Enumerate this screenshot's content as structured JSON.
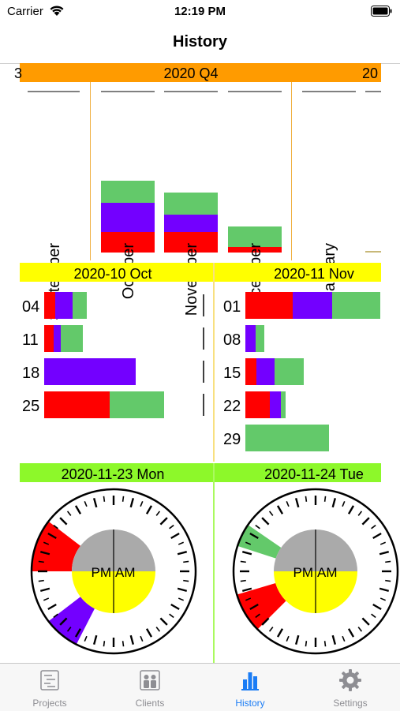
{
  "status_bar": {
    "carrier": "Carrier",
    "time": "12:19 PM"
  },
  "nav": {
    "title": "History"
  },
  "quarter": {
    "label": "2020 Q4",
    "next_label": "20",
    "prev_label": "3",
    "header_color": "#ff9b00",
    "months": [
      {
        "name": "September",
        "segments": []
      },
      {
        "name": "October",
        "segments": [
          {
            "color": "#ff0000",
            "value": 26
          },
          {
            "color": "#7300ff",
            "value": 37
          },
          {
            "color": "#63c96a",
            "value": 28
          }
        ]
      },
      {
        "name": "November",
        "segments": [
          {
            "color": "#ff0000",
            "value": 26
          },
          {
            "color": "#7300ff",
            "value": 22
          },
          {
            "color": "#63c96a",
            "value": 28
          }
        ]
      },
      {
        "name": "December",
        "segments": [
          {
            "color": "#ff0000",
            "value": 7
          },
          {
            "color": "#63c96a",
            "value": 26
          }
        ]
      },
      {
        "name": "January",
        "segments": []
      }
    ]
  },
  "weeks": {
    "header_color": "#ffff00",
    "left": {
      "title": "2020-10 Oct",
      "rows": [
        {
          "day": "04",
          "segments": [
            {
              "color": "#ff0000",
              "value": 14
            },
            {
              "color": "#7300ff",
              "value": 22
            },
            {
              "color": "#63c96a",
              "value": 18
            }
          ]
        },
        {
          "day": "11",
          "segments": [
            {
              "color": "#ff0000",
              "value": 12
            },
            {
              "color": "#7300ff",
              "value": 9
            },
            {
              "color": "#63c96a",
              "value": 28
            }
          ]
        },
        {
          "day": "18",
          "segments": [
            {
              "color": "#7300ff",
              "value": 116
            }
          ]
        },
        {
          "day": "25",
          "segments": [
            {
              "color": "#ff0000",
              "value": 83
            },
            {
              "color": "#63c96a",
              "value": 69
            }
          ]
        }
      ]
    },
    "right": {
      "title": "2020-11 Nov",
      "rows": [
        {
          "day": "01",
          "segments": [
            {
              "color": "#ff0000",
              "value": 60
            },
            {
              "color": "#7300ff",
              "value": 50
            },
            {
              "color": "#63c96a",
              "value": 61
            }
          ]
        },
        {
          "day": "08",
          "segments": [
            {
              "color": "#7300ff",
              "value": 13
            },
            {
              "color": "#63c96a",
              "value": 11
            }
          ]
        },
        {
          "day": "15",
          "segments": [
            {
              "color": "#ff0000",
              "value": 14
            },
            {
              "color": "#7300ff",
              "value": 23
            },
            {
              "color": "#63c96a",
              "value": 37
            }
          ]
        },
        {
          "day": "22",
          "segments": [
            {
              "color": "#ff0000",
              "value": 31
            },
            {
              "color": "#7300ff",
              "value": 14
            },
            {
              "color": "#63c96a",
              "value": 6
            }
          ]
        },
        {
          "day": "29",
          "segments": [
            {
              "color": "#63c96a",
              "value": 106
            }
          ]
        }
      ]
    }
  },
  "days": {
    "header_color": "#8df82a",
    "pm_label": "PM",
    "am_label": "AM",
    "left": {
      "title": "2020-11-23 Mon",
      "sectors": [
        {
          "color": "#7300ff",
          "start_hour": 13.8,
          "end_hour": 15.5
        },
        {
          "color": "#ff0000",
          "start_hour": 18.0,
          "end_hour": 20.5
        }
      ]
    },
    "right": {
      "title": "2020-11-24 Tue",
      "sectors": [
        {
          "color": "#ff0000",
          "start_hour": 15.0,
          "end_hour": 16.9
        },
        {
          "color": "#63c96a",
          "start_hour": 19.2,
          "end_hour": 20.3
        }
      ]
    }
  },
  "tabs": [
    {
      "label": "Projects",
      "icon": "projects-icon",
      "active": false
    },
    {
      "label": "Clients",
      "icon": "clients-icon",
      "active": false
    },
    {
      "label": "History",
      "icon": "history-icon",
      "active": true
    },
    {
      "label": "Settings",
      "icon": "gear-icon",
      "active": false
    }
  ]
}
